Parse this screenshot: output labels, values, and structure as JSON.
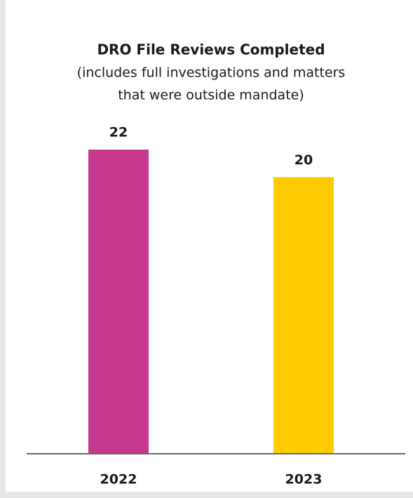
{
  "chart_data": {
    "type": "bar",
    "title": "DRO File Reviews Completed",
    "subtitle": [
      "(includes full investigations and matters",
      "that were outside mandate)"
    ],
    "categories": [
      "2022",
      "2023"
    ],
    "values": [
      22,
      20
    ],
    "colors": [
      "#c4398f",
      "#ffcc00"
    ]
  }
}
